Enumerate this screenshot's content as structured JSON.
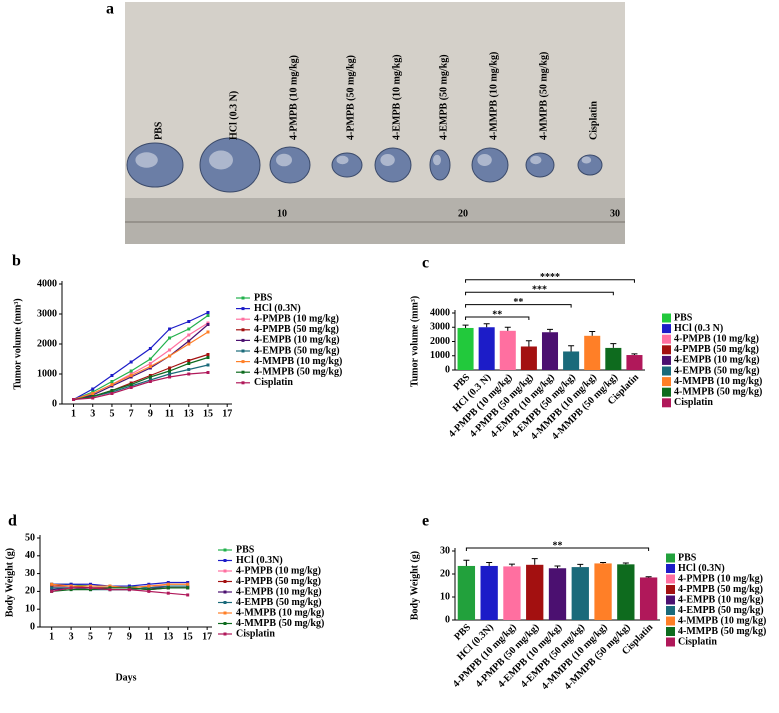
{
  "photo": {
    "panel": "a",
    "labels": [
      "PBS",
      "HCl (0.3 N)",
      "4-PMPB (10 mg/kg)",
      "4-PMPB (50 mg/kg)",
      "4-EMPB (10 mg/kg)",
      "4-EMPB (50 mg/kg)",
      "4-MMPB (10 mg/kg)",
      "4-MMPB (50 mg/kg)",
      "Cisplatin"
    ],
    "ruler_labels": [
      "10",
      "20",
      "30"
    ]
  },
  "chart_data": [
    {
      "type": "line",
      "panel": "b",
      "ylabel": "Tumor volume (mm³)",
      "x": [
        1,
        3,
        5,
        7,
        9,
        11,
        13,
        15
      ],
      "xlim": [
        -0.2,
        17.5
      ],
      "xticks": [
        1,
        3,
        5,
        7,
        9,
        11,
        13,
        15,
        17
      ],
      "ylim": [
        0,
        4000
      ],
      "yticks": [
        0,
        1000,
        2000,
        3000,
        4000
      ],
      "series": [
        {
          "name": "PBS",
          "color": "#22b14c",
          "values": [
            150,
            400,
            750,
            1100,
            1500,
            2200,
            2500,
            2950
          ]
        },
        {
          "name": "HCl (0.3N)",
          "color": "#1c1cc8",
          "values": [
            150,
            500,
            950,
            1400,
            1850,
            2500,
            2750,
            3050
          ]
        },
        {
          "name": "4-PMPB (10 mg/kg)",
          "color": "#ff6fa0",
          "values": [
            150,
            350,
            650,
            1000,
            1350,
            1800,
            2300,
            2700
          ]
        },
        {
          "name": "4-PMPB (50 mg/kg)",
          "color": "#a31010",
          "values": [
            150,
            250,
            450,
            700,
            950,
            1200,
            1450,
            1650
          ]
        },
        {
          "name": "4-EMPB (10 mg/kg)",
          "color": "#4b1070",
          "values": [
            150,
            300,
            600,
            900,
            1200,
            1600,
            2100,
            2650
          ]
        },
        {
          "name": "4-EMPB (50 mg/kg)",
          "color": "#1a6a7a",
          "values": [
            150,
            250,
            400,
            600,
            800,
            1000,
            1150,
            1300
          ]
        },
        {
          "name": "4-MMPB (10 mg/kg)",
          "color": "#ff7f27",
          "values": [
            150,
            350,
            650,
            950,
            1250,
            1600,
            2000,
            2400
          ]
        },
        {
          "name": "4-MMPB (50 mg/kg)",
          "color": "#0e6b1e",
          "values": [
            150,
            250,
            450,
            650,
            900,
            1100,
            1350,
            1550
          ]
        },
        {
          "name": "Cisplatin",
          "color": "#b0185a",
          "values": [
            150,
            200,
            350,
            550,
            750,
            900,
            1000,
            1050
          ]
        }
      ]
    },
    {
      "type": "bar",
      "panel": "c",
      "ylabel": "Tumor volume (mm³)",
      "categories": [
        "PBS",
        "HCl (0.3 N)",
        "4-PMPB (10 mg/kg)",
        "4-PMPB (50 mg/kg)",
        "4-EMPB (10 mg/kg)",
        "4-EMPB (50 mg/kg)",
        "4-MMPB (10 mg/kg)",
        "4-MMPB (50 mg/kg)",
        "Cisplatin"
      ],
      "values": [
        2950,
        3000,
        2750,
        1650,
        2650,
        1300,
        2400,
        1550,
        1050
      ],
      "errors": [
        200,
        250,
        250,
        400,
        200,
        400,
        300,
        300,
        80
      ],
      "colors": [
        "#22c93c",
        "#1c1cc8",
        "#ff6fa0",
        "#a31010",
        "#4b1070",
        "#1a6a7a",
        "#ff7f27",
        "#0e6b1e",
        "#b0185a"
      ],
      "ylim": [
        0,
        4000
      ],
      "yticks": [
        0,
        1000,
        2000,
        3000,
        4000
      ],
      "significance": [
        {
          "from": 0,
          "to": 3,
          "label": "**"
        },
        {
          "from": 0,
          "to": 5,
          "label": "**"
        },
        {
          "from": 0,
          "to": 7,
          "label": "***"
        },
        {
          "from": 0,
          "to": 8,
          "label": "****"
        }
      ]
    },
    {
      "type": "line",
      "panel": "d",
      "ylabel": "Body Weight (g)",
      "xlabel": "Days",
      "x": [
        1,
        3,
        5,
        7,
        9,
        11,
        13,
        15
      ],
      "xlim": [
        -0.2,
        17.5
      ],
      "xticks": [
        1,
        3,
        5,
        7,
        9,
        11,
        13,
        15,
        17
      ],
      "ylim": [
        0,
        50
      ],
      "yticks": [
        0,
        10,
        20,
        30,
        40,
        50
      ],
      "series": [
        {
          "name": "PBS",
          "color": "#22b14c",
          "values": [
            24,
            24,
            23,
            23,
            23,
            22,
            23,
            23
          ]
        },
        {
          "name": "HCl (0.3N)",
          "color": "#1c1cc8",
          "values": [
            24,
            24,
            24,
            23,
            23,
            24,
            25,
            25
          ]
        },
        {
          "name": "4-PMPB (10 mg/kg)",
          "color": "#ff6fa0",
          "values": [
            22,
            22,
            22,
            22,
            22,
            23,
            23,
            23
          ]
        },
        {
          "name": "4-PMPB (50 mg/kg)",
          "color": "#a31010",
          "values": [
            23,
            23,
            22,
            22,
            22,
            21,
            22,
            22
          ]
        },
        {
          "name": "4-EMPB (10 mg/kg)",
          "color": "#4b1070",
          "values": [
            21,
            22,
            22,
            21,
            21,
            22,
            22,
            22
          ]
        },
        {
          "name": "4-EMPB (50 mg/kg)",
          "color": "#1a6a7a",
          "values": [
            22,
            22,
            21,
            21,
            21,
            22,
            23,
            23
          ]
        },
        {
          "name": "4-MMPB (10 mg/kg)",
          "color": "#ff7f27",
          "values": [
            24,
            23,
            23,
            23,
            22,
            23,
            24,
            24
          ]
        },
        {
          "name": "4-MMPB (50 mg/kg)",
          "color": "#0e6b1e",
          "values": [
            20,
            21,
            21,
            22,
            22,
            21,
            22,
            22
          ]
        },
        {
          "name": "Cisplatin",
          "color": "#b0185a",
          "values": [
            20,
            22,
            22,
            21,
            21,
            20,
            19,
            18
          ]
        }
      ]
    },
    {
      "type": "bar",
      "panel": "e",
      "ylabel": "Body Weight (g)",
      "categories": [
        "PBS",
        "HCl (0.3N)",
        "4-PMPB (10 mg/kg)",
        "4-PMPB (50 mg/kg)",
        "4-EMPB (10 mg/kg)",
        "4-EMPB (50 mg/kg)",
        "4-MMPB (10 mg/kg)",
        "4-MMPB (50 mg/kg)",
        "Cisplatin"
      ],
      "values": [
        23.5,
        23.5,
        23.3,
        24,
        22.5,
        23,
        24.6,
        24.2,
        18.5
      ],
      "errors": [
        2.5,
        1.5,
        1,
        2.7,
        1,
        1.2,
        0.4,
        0.6,
        0.3
      ],
      "colors": [
        "#22a13c",
        "#1c1cc8",
        "#ff6fa0",
        "#a31010",
        "#4b1070",
        "#1a6a7a",
        "#ff7f27",
        "#0e6b1e",
        "#b0185a"
      ],
      "ylim": [
        0,
        30
      ],
      "yticks": [
        0,
        10,
        20,
        30
      ],
      "significance": [
        {
          "from": 0,
          "to": 8,
          "label": "**"
        }
      ]
    }
  ]
}
